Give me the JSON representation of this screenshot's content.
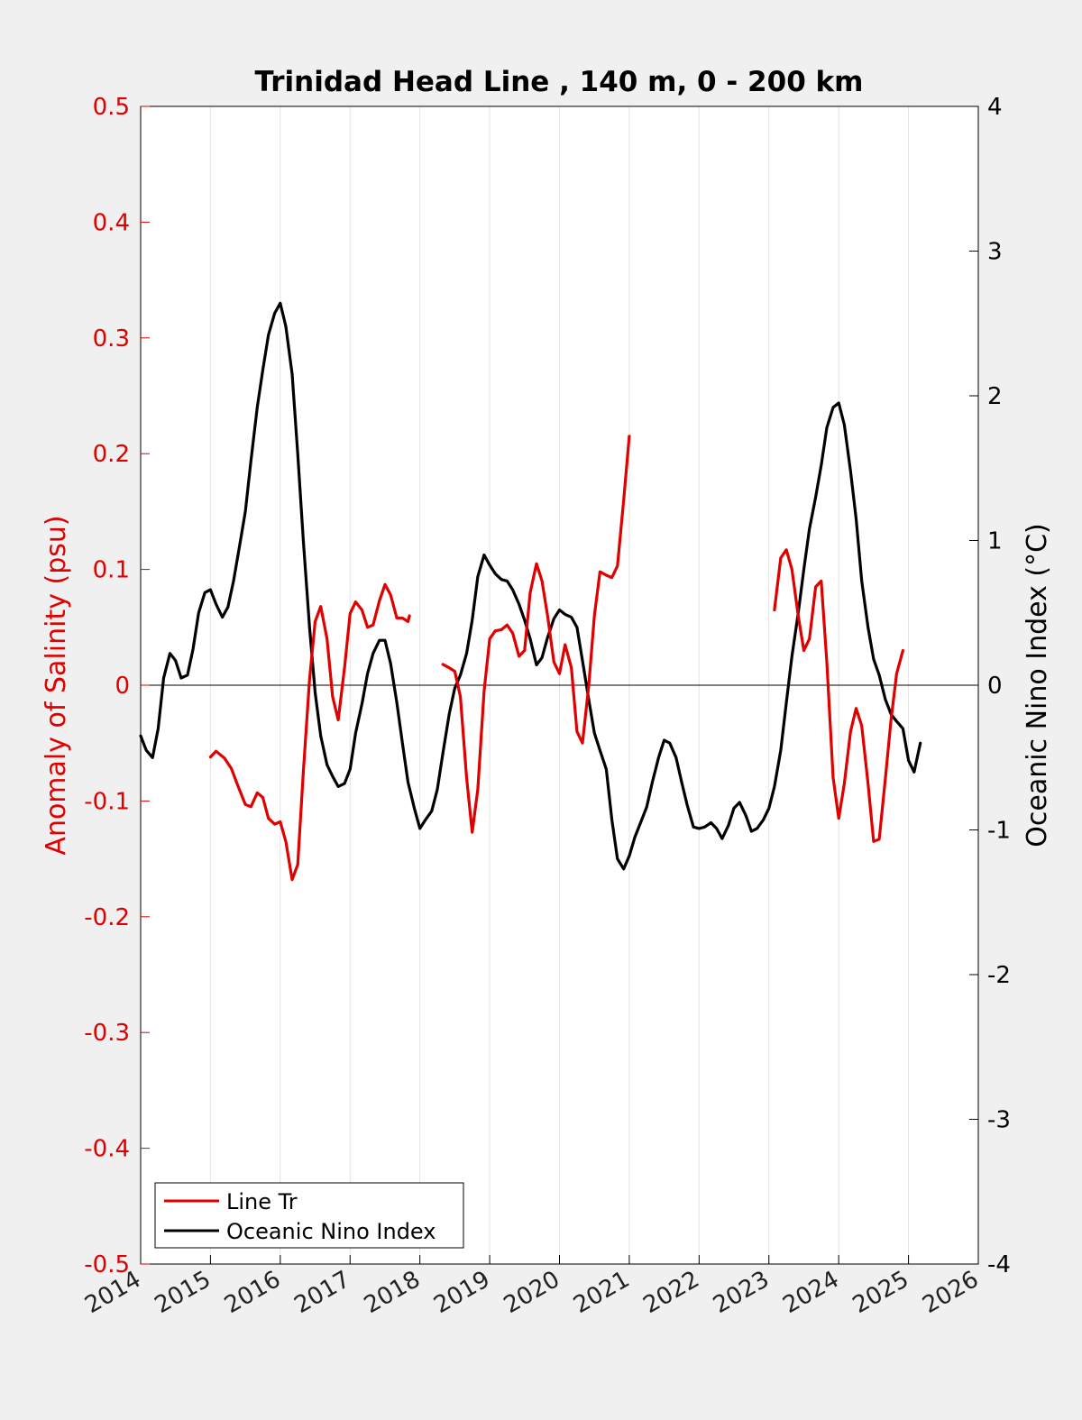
{
  "chart_data": {
    "type": "line",
    "title": "Trinidad Head Line , 140 m, 0 - 200 km",
    "ylabel": "Anomaly of Salinity (psu)",
    "ylabel_right": "Oceanic Nino Index (°C)",
    "xlabel": "",
    "xlim": [
      2014,
      2026
    ],
    "ylim": [
      -0.5,
      0.5
    ],
    "ylim_right": [
      -4,
      4
    ],
    "x_ticks": [
      "2014",
      "2015",
      "2016",
      "2017",
      "2018",
      "2019",
      "2020",
      "2021",
      "2022",
      "2023",
      "2024",
      "2025",
      "2026"
    ],
    "y_ticks": [
      "-0.5",
      "-0.4",
      "-0.3",
      "-0.2",
      "-0.1",
      "0",
      "0.1",
      "0.2",
      "0.3",
      "0.4",
      "0.5"
    ],
    "y_ticks_right": [
      "-4",
      "-3",
      "-2",
      "-1",
      "0",
      "1",
      "2",
      "3",
      "4"
    ],
    "grid": "vertical",
    "zero_line": true,
    "legend_position": "bottom-left",
    "series": [
      {
        "name": "Line Tr",
        "axis": "left",
        "color": "#e00000",
        "segments": [
          [
            [
              2015.0,
              -0.062
            ],
            [
              2015.08,
              -0.057
            ],
            [
              2015.2,
              -0.063
            ],
            [
              2015.3,
              -0.072
            ],
            [
              2015.4,
              -0.088
            ],
            [
              2015.5,
              -0.103
            ],
            [
              2015.58,
              -0.105
            ],
            [
              2015.67,
              -0.093
            ],
            [
              2015.75,
              -0.097
            ],
            [
              2015.83,
              -0.115
            ],
            [
              2015.92,
              -0.12
            ],
            [
              2016.0,
              -0.118
            ],
            [
              2016.08,
              -0.135
            ],
            [
              2016.17,
              -0.168
            ],
            [
              2016.25,
              -0.155
            ],
            [
              2016.33,
              -0.075
            ],
            [
              2016.42,
              0.005
            ],
            [
              2016.5,
              0.055
            ],
            [
              2016.58,
              0.068
            ],
            [
              2016.67,
              0.04
            ],
            [
              2016.75,
              -0.01
            ],
            [
              2016.83,
              -0.03
            ],
            [
              2016.92,
              0.015
            ],
            [
              2017.0,
              0.062
            ],
            [
              2017.08,
              0.072
            ],
            [
              2017.17,
              0.065
            ],
            [
              2017.25,
              0.05
            ],
            [
              2017.33,
              0.052
            ],
            [
              2017.42,
              0.073
            ],
            [
              2017.5,
              0.087
            ],
            [
              2017.58,
              0.078
            ],
            [
              2017.67,
              0.058
            ],
            [
              2017.75,
              0.058
            ],
            [
              2017.83,
              0.055
            ],
            [
              2017.85,
              0.06
            ]
          ],
          [
            [
              2018.33,
              0.018
            ],
            [
              2018.42,
              0.015
            ],
            [
              2018.5,
              0.012
            ],
            [
              2018.58,
              -0.01
            ],
            [
              2018.67,
              -0.08
            ],
            [
              2018.75,
              -0.127
            ],
            [
              2018.83,
              -0.09
            ],
            [
              2018.92,
              -0.005
            ],
            [
              2019.0,
              0.04
            ],
            [
              2019.08,
              0.047
            ],
            [
              2019.17,
              0.048
            ],
            [
              2019.25,
              0.052
            ],
            [
              2019.33,
              0.045
            ],
            [
              2019.42,
              0.025
            ],
            [
              2019.5,
              0.03
            ],
            [
              2019.58,
              0.08
            ],
            [
              2019.67,
              0.105
            ],
            [
              2019.75,
              0.09
            ],
            [
              2019.83,
              0.06
            ],
            [
              2019.92,
              0.02
            ],
            [
              2020.0,
              0.01
            ],
            [
              2020.08,
              0.035
            ],
            [
              2020.17,
              0.015
            ],
            [
              2020.25,
              -0.04
            ],
            [
              2020.33,
              -0.05
            ],
            [
              2020.42,
              0.0
            ],
            [
              2020.5,
              0.06
            ],
            [
              2020.58,
              0.098
            ],
            [
              2020.67,
              0.095
            ],
            [
              2020.75,
              0.093
            ],
            [
              2020.83,
              0.103
            ],
            [
              2020.92,
              0.16
            ],
            [
              2021.0,
              0.215
            ]
          ],
          [
            [
              2023.08,
              0.065
            ],
            [
              2023.17,
              0.11
            ],
            [
              2023.25,
              0.117
            ],
            [
              2023.33,
              0.1
            ],
            [
              2023.42,
              0.06
            ],
            [
              2023.5,
              0.03
            ],
            [
              2023.58,
              0.04
            ],
            [
              2023.67,
              0.085
            ],
            [
              2023.75,
              0.09
            ],
            [
              2023.83,
              0.02
            ],
            [
              2023.92,
              -0.08
            ],
            [
              2024.0,
              -0.115
            ],
            [
              2024.08,
              -0.085
            ],
            [
              2024.17,
              -0.04
            ],
            [
              2024.25,
              -0.02
            ],
            [
              2024.33,
              -0.035
            ],
            [
              2024.42,
              -0.085
            ],
            [
              2024.5,
              -0.135
            ],
            [
              2024.58,
              -0.133
            ],
            [
              2024.67,
              -0.08
            ],
            [
              2024.75,
              -0.03
            ],
            [
              2024.83,
              0.01
            ],
            [
              2024.92,
              0.03
            ]
          ]
        ]
      },
      {
        "name": "Oceanic Nino Index",
        "axis": "right",
        "color": "#000000",
        "segments": [
          [
            [
              2014.0,
              -0.35
            ],
            [
              2014.08,
              -0.45
            ],
            [
              2014.17,
              -0.5
            ],
            [
              2014.25,
              -0.3
            ],
            [
              2014.33,
              0.05
            ],
            [
              2014.42,
              0.22
            ],
            [
              2014.5,
              0.17
            ],
            [
              2014.58,
              0.05
            ],
            [
              2014.67,
              0.07
            ],
            [
              2014.75,
              0.25
            ],
            [
              2014.83,
              0.5
            ],
            [
              2014.92,
              0.64
            ],
            [
              2015.0,
              0.66
            ],
            [
              2015.08,
              0.56
            ],
            [
              2015.17,
              0.47
            ],
            [
              2015.25,
              0.54
            ],
            [
              2015.33,
              0.72
            ],
            [
              2015.42,
              0.97
            ],
            [
              2015.5,
              1.2
            ],
            [
              2015.58,
              1.55
            ],
            [
              2015.67,
              1.92
            ],
            [
              2015.75,
              2.18
            ],
            [
              2015.83,
              2.42
            ],
            [
              2015.92,
              2.57
            ],
            [
              2016.0,
              2.64
            ],
            [
              2016.08,
              2.48
            ],
            [
              2016.17,
              2.15
            ],
            [
              2016.25,
              1.6
            ],
            [
              2016.33,
              1.0
            ],
            [
              2016.42,
              0.4
            ],
            [
              2016.5,
              -0.05
            ],
            [
              2016.58,
              -0.35
            ],
            [
              2016.67,
              -0.55
            ],
            [
              2016.75,
              -0.63
            ],
            [
              2016.83,
              -0.7
            ],
            [
              2016.92,
              -0.68
            ],
            [
              2017.0,
              -0.58
            ],
            [
              2017.08,
              -0.33
            ],
            [
              2017.17,
              -0.13
            ],
            [
              2017.25,
              0.08
            ],
            [
              2017.33,
              0.22
            ],
            [
              2017.42,
              0.31
            ],
            [
              2017.5,
              0.31
            ],
            [
              2017.58,
              0.15
            ],
            [
              2017.67,
              -0.12
            ],
            [
              2017.75,
              -0.4
            ],
            [
              2017.83,
              -0.67
            ],
            [
              2017.92,
              -0.85
            ],
            [
              2018.0,
              -0.99
            ],
            [
              2018.08,
              -0.93
            ],
            [
              2018.17,
              -0.87
            ],
            [
              2018.25,
              -0.72
            ],
            [
              2018.33,
              -0.47
            ],
            [
              2018.42,
              -0.2
            ],
            [
              2018.5,
              -0.02
            ],
            [
              2018.58,
              0.07
            ],
            [
              2018.67,
              0.22
            ],
            [
              2018.75,
              0.45
            ],
            [
              2018.83,
              0.75
            ],
            [
              2018.92,
              0.9
            ],
            [
              2019.0,
              0.83
            ],
            [
              2019.08,
              0.77
            ],
            [
              2019.17,
              0.73
            ],
            [
              2019.25,
              0.72
            ],
            [
              2019.33,
              0.66
            ],
            [
              2019.42,
              0.56
            ],
            [
              2019.5,
              0.45
            ],
            [
              2019.58,
              0.32
            ],
            [
              2019.67,
              0.14
            ],
            [
              2019.75,
              0.19
            ],
            [
              2019.83,
              0.33
            ],
            [
              2019.92,
              0.46
            ],
            [
              2020.0,
              0.52
            ],
            [
              2020.08,
              0.49
            ],
            [
              2020.17,
              0.47
            ],
            [
              2020.25,
              0.4
            ],
            [
              2020.33,
              0.17
            ],
            [
              2020.42,
              -0.1
            ],
            [
              2020.5,
              -0.33
            ],
            [
              2020.58,
              -0.45
            ],
            [
              2020.67,
              -0.58
            ],
            [
              2020.75,
              -0.93
            ],
            [
              2020.83,
              -1.2
            ],
            [
              2020.92,
              -1.27
            ],
            [
              2021.0,
              -1.18
            ],
            [
              2021.08,
              -1.05
            ],
            [
              2021.17,
              -0.94
            ],
            [
              2021.25,
              -0.84
            ],
            [
              2021.33,
              -0.67
            ],
            [
              2021.42,
              -0.5
            ],
            [
              2021.5,
              -0.38
            ],
            [
              2021.58,
              -0.4
            ],
            [
              2021.67,
              -0.5
            ],
            [
              2021.75,
              -0.67
            ],
            [
              2021.83,
              -0.83
            ],
            [
              2021.92,
              -0.98
            ],
            [
              2022.0,
              -0.99
            ],
            [
              2022.08,
              -0.98
            ],
            [
              2022.17,
              -0.95
            ],
            [
              2022.25,
              -0.99
            ],
            [
              2022.33,
              -1.06
            ],
            [
              2022.42,
              -0.97
            ],
            [
              2022.5,
              -0.85
            ],
            [
              2022.58,
              -0.81
            ],
            [
              2022.67,
              -0.9
            ],
            [
              2022.75,
              -1.01
            ],
            [
              2022.83,
              -0.99
            ],
            [
              2022.92,
              -0.93
            ],
            [
              2023.0,
              -0.85
            ],
            [
              2023.08,
              -0.7
            ],
            [
              2023.17,
              -0.45
            ],
            [
              2023.25,
              -0.12
            ],
            [
              2023.33,
              0.2
            ],
            [
              2023.42,
              0.5
            ],
            [
              2023.5,
              0.8
            ],
            [
              2023.58,
              1.08
            ],
            [
              2023.67,
              1.3
            ],
            [
              2023.75,
              1.52
            ],
            [
              2023.83,
              1.78
            ],
            [
              2023.92,
              1.92
            ],
            [
              2024.0,
              1.95
            ],
            [
              2024.08,
              1.8
            ],
            [
              2024.17,
              1.48
            ],
            [
              2024.25,
              1.15
            ],
            [
              2024.33,
              0.72
            ],
            [
              2024.42,
              0.4
            ],
            [
              2024.5,
              0.18
            ],
            [
              2024.58,
              0.07
            ],
            [
              2024.67,
              -0.1
            ],
            [
              2024.75,
              -0.2
            ],
            [
              2024.83,
              -0.25
            ],
            [
              2024.92,
              -0.3
            ],
            [
              2025.0,
              -0.52
            ],
            [
              2025.08,
              -0.6
            ],
            [
              2025.17,
              -0.4
            ]
          ]
        ]
      }
    ]
  }
}
